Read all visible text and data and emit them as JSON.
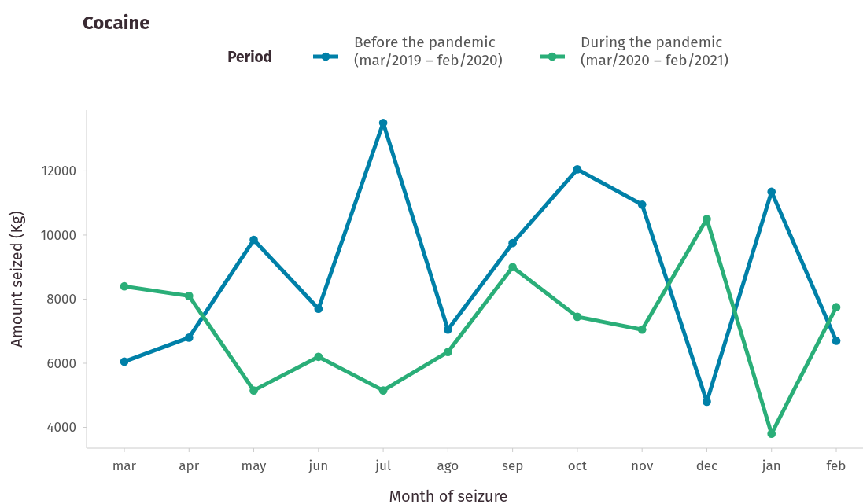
{
  "chart_data": {
    "type": "line",
    "title": "Cocaine",
    "xlabel": "Month of seizure",
    "ylabel": "Amount seized (Kg)",
    "legend_title": "Period",
    "legend": "top",
    "marker": "circle",
    "grid": false,
    "categories": [
      "mar",
      "apr",
      "may",
      "jun",
      "jul",
      "ago",
      "sep",
      "oct",
      "nov",
      "dec",
      "jan",
      "feb"
    ],
    "ylim": [
      3350,
      13900
    ],
    "yticks": [
      4000,
      6000,
      8000,
      10000,
      12000
    ],
    "series": [
      {
        "name": "Before the pandemic\n(mar/2019 – feb/2020)",
        "color": "#0080a8",
        "values": [
          6050,
          6800,
          9850,
          7700,
          13500,
          7050,
          9750,
          12050,
          10950,
          4800,
          11350,
          6700
        ]
      },
      {
        "name": "During the pandemic\n(mar/2020 – feb/2021)",
        "color": "#2aae78",
        "values": [
          8400,
          8100,
          5150,
          6200,
          5150,
          6350,
          9000,
          7450,
          7050,
          10500,
          3800,
          7750
        ]
      }
    ]
  }
}
